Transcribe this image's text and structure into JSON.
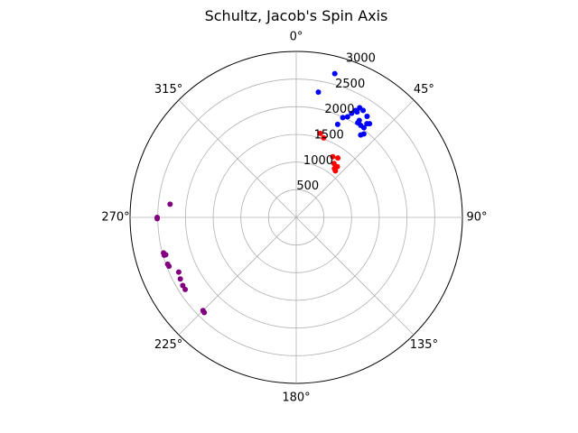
{
  "chart_data": {
    "type": "scatter",
    "projection": "polar",
    "title": "Schultz, Jacob's Spin Axis",
    "theta_zero_location": "N",
    "theta_direction": "clockwise",
    "theta_tick_labels": [
      "0°",
      "45°",
      "90°",
      "135°",
      "180°",
      "225°",
      "270°",
      "315°"
    ],
    "r_tick_labels": [
      "500",
      "1000",
      "1500",
      "2000",
      "2500",
      "3000"
    ],
    "r_ticks": [
      500,
      1000,
      1500,
      2000,
      2500,
      3000
    ],
    "rlim": [
      0,
      3000
    ],
    "grid": true,
    "series": [
      {
        "color": "#0000ff",
        "points": [
          {
            "theta": 15,
            "r": 2690
          },
          {
            "theta": 10,
            "r": 2300
          },
          {
            "theta": 28,
            "r": 2130
          },
          {
            "theta": 32,
            "r": 2280
          },
          {
            "theta": 30,
            "r": 2290
          },
          {
            "theta": 29,
            "r": 2210
          },
          {
            "theta": 30,
            "r": 2200
          },
          {
            "theta": 27,
            "r": 2040
          },
          {
            "theta": 25,
            "r": 1990
          },
          {
            "theta": 24,
            "r": 1840
          },
          {
            "theta": 33,
            "r": 2090
          },
          {
            "theta": 33,
            "r": 2040
          },
          {
            "theta": 35,
            "r": 2230
          },
          {
            "theta": 35,
            "r": 2030
          },
          {
            "theta": 37,
            "r": 2030
          },
          {
            "theta": 37,
            "r": 2120
          },
          {
            "theta": 38,
            "r": 2150
          },
          {
            "theta": 39,
            "r": 1940
          },
          {
            "theta": 38,
            "r": 1890
          }
        ]
      },
      {
        "color": "#ff0000",
        "points": [
          {
            "theta": 16,
            "r": 1580
          },
          {
            "theta": 19,
            "r": 1520
          },
          {
            "theta": 31,
            "r": 1280
          },
          {
            "theta": 35,
            "r": 1310
          },
          {
            "theta": 35,
            "r": 1190
          },
          {
            "theta": 39,
            "r": 1180
          },
          {
            "theta": 38,
            "r": 1120
          },
          {
            "theta": 40,
            "r": 1100
          }
        ]
      },
      {
        "color": "#800080",
        "points": [
          {
            "theta": 276,
            "r": 2290
          },
          {
            "theta": 270,
            "r": 2510
          },
          {
            "theta": 269.5,
            "r": 2510
          },
          {
            "theta": 255,
            "r": 2480
          },
          {
            "theta": 254,
            "r": 2480
          },
          {
            "theta": 254,
            "r": 2450
          },
          {
            "theta": 250,
            "r": 2470
          },
          {
            "theta": 249,
            "r": 2460
          },
          {
            "theta": 245,
            "r": 2340
          },
          {
            "theta": 242,
            "r": 2370
          },
          {
            "theta": 239,
            "r": 2390
          },
          {
            "theta": 237,
            "r": 2390
          },
          {
            "theta": 225,
            "r": 2380
          },
          {
            "theta": 224,
            "r": 2390
          }
        ]
      }
    ]
  }
}
